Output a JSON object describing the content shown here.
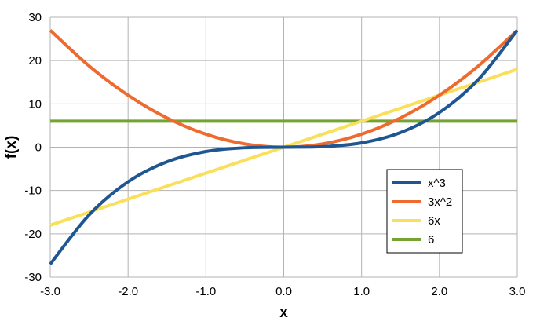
{
  "chart_data": {
    "type": "line",
    "title": "",
    "xlabel": "x",
    "ylabel": "f(x)",
    "xlim": [
      -3.0,
      3.0
    ],
    "ylim": [
      -30,
      30
    ],
    "x_ticks": [
      "-3.0",
      "-2.0",
      "-1.0",
      "0.0",
      "1.0",
      "2.0",
      "3.0"
    ],
    "x_tick_values": [
      -3,
      -2,
      -1,
      0,
      1,
      2,
      3
    ],
    "y_ticks": [
      "30",
      "20",
      "10",
      "0",
      "-10",
      "-20",
      "-30"
    ],
    "y_tick_values": [
      30,
      20,
      10,
      0,
      -10,
      -20,
      -30
    ],
    "grid": true,
    "legend_position": "lower-right",
    "x": [
      -3.0,
      -2.5,
      -2.0,
      -1.5,
      -1.0,
      -0.5,
      0.0,
      0.5,
      1.0,
      1.5,
      2.0,
      2.5,
      3.0
    ],
    "series": [
      {
        "name": "x^3",
        "color": "#1f5591",
        "values": [
          -27,
          -15.625,
          -8,
          -3.375,
          -1,
          -0.125,
          0,
          0.125,
          1,
          3.375,
          8,
          15.625,
          27
        ]
      },
      {
        "name": "3x^2",
        "color": "#ee6a2e",
        "values": [
          27,
          18.75,
          12,
          6.75,
          3,
          0.75,
          0,
          0.75,
          3,
          6.75,
          12,
          18.75,
          27
        ]
      },
      {
        "name": "6x",
        "color": "#f9df5b",
        "values": [
          -18,
          -15,
          -12,
          -9,
          -6,
          -3,
          0,
          3,
          6,
          9,
          12,
          15,
          18
        ]
      },
      {
        "name": "6",
        "color": "#72a42f",
        "values": [
          6,
          6,
          6,
          6,
          6,
          6,
          6,
          6,
          6,
          6,
          6,
          6,
          6
        ]
      }
    ]
  }
}
